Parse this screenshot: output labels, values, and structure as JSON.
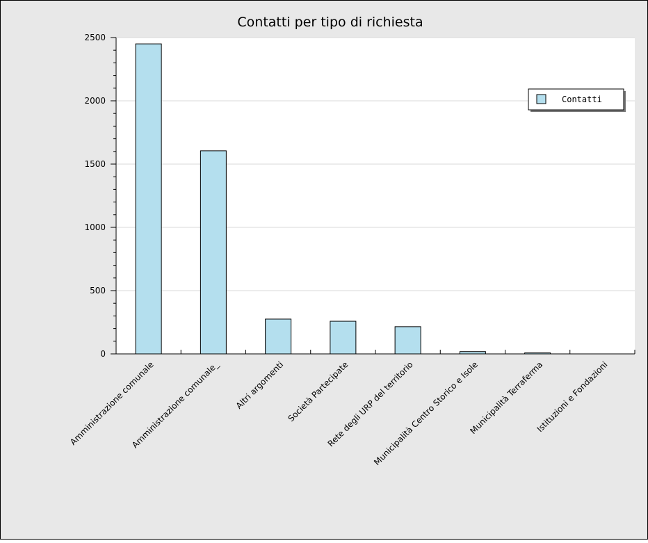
{
  "chart_data": {
    "type": "bar",
    "title": "Contatti per tipo di richiesta",
    "categories": [
      "Amministrazione comunale",
      "Amministrazione comunale_",
      "Altri argomenti",
      "Società Partecipate",
      "Rete degli URP del territorio",
      "Municipalità Centro Storico e Isole",
      "Municipalità Terraferma",
      "Istituzioni e Fondazioni"
    ],
    "series": [
      {
        "name": "Contatti",
        "values": [
          2450,
          1605,
          275,
          258,
          215,
          18,
          8,
          0
        ]
      }
    ],
    "xlabel": "",
    "ylabel": "",
    "ylim": [
      0,
      2500
    ],
    "yticks": [
      "0",
      "500",
      "1000",
      "1500",
      "2000",
      "2500"
    ],
    "grid": true,
    "legend_position": "top-right",
    "colors": {
      "bar_fill": "#b4dfee",
      "bar_stroke": "#000000",
      "plot_background": "#ffffff",
      "frame_background": "#e8e8e8",
      "grid": "#d9d9d9"
    }
  }
}
